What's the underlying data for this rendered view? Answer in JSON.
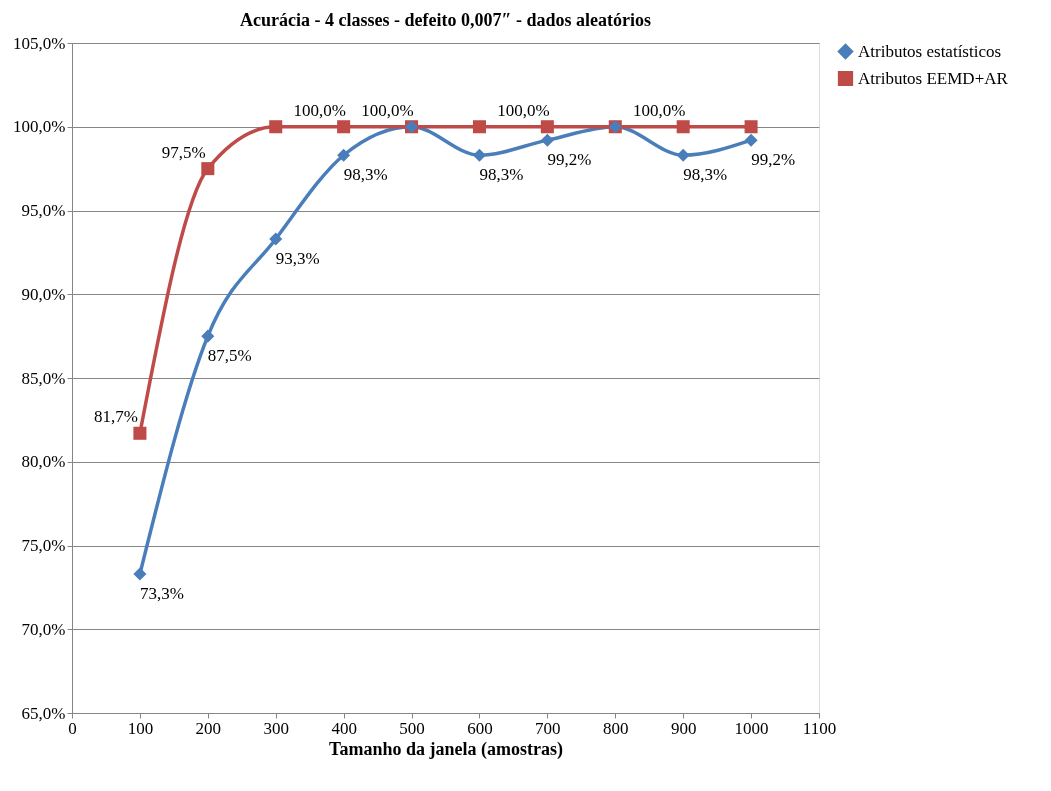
{
  "chart_data": {
    "type": "line",
    "title": "Acurácia - 4 classes - defeito 0,007″ - dados aleatórios",
    "xlabel": "Tamanho da janela (amostras)",
    "x": [
      100,
      200,
      300,
      400,
      500,
      600,
      700,
      800,
      900,
      1000
    ],
    "xlim": [
      0,
      1100
    ],
    "xticks": [
      0,
      100,
      200,
      300,
      400,
      500,
      600,
      700,
      800,
      900,
      1000,
      1100
    ],
    "ylim": [
      65,
      105
    ],
    "yticks": [
      {
        "value": 65,
        "label": "65,0%"
      },
      {
        "value": 70,
        "label": "70,0%"
      },
      {
        "value": 75,
        "label": "75,0%"
      },
      {
        "value": 80,
        "label": "80,0%"
      },
      {
        "value": 85,
        "label": "85,0%"
      },
      {
        "value": 90,
        "label": "90,0%"
      },
      {
        "value": 95,
        "label": "95,0%"
      },
      {
        "value": 100,
        "label": "100,0%"
      },
      {
        "value": 105,
        "label": "105,0%"
      }
    ],
    "grid": "y",
    "legend": "right",
    "series": [
      {
        "name": "Atributos estatísticos",
        "color": "#4a7ebb",
        "marker": "diamond",
        "values": [
          73.3,
          87.5,
          93.3,
          98.3,
          100,
          98.3,
          99.2,
          100,
          98.3,
          99.2
        ],
        "value_labels": [
          "73,3%",
          "87,5%",
          "93,3%",
          "98,3%",
          null,
          "98,3%",
          "99,2%",
          null,
          "98,3%",
          "99,2%"
        ]
      },
      {
        "name": "Atributos EEMD+AR",
        "color": "#be4b48",
        "marker": "square",
        "values": [
          81.7,
          97.5,
          100,
          100,
          100,
          100,
          100,
          100,
          100,
          100
        ],
        "value_labels": [
          "81,7%",
          "97,5%",
          null,
          "100,0%",
          "100,0%",
          null,
          "100,0%",
          null,
          "100,0%",
          null
        ]
      }
    ]
  }
}
